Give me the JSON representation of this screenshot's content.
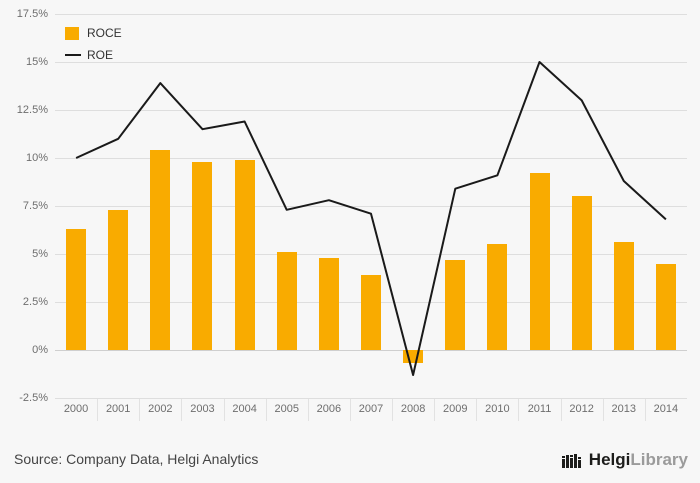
{
  "legend": {
    "roce_label": "ROCE",
    "roe_label": "ROE"
  },
  "footer": {
    "source": "Source: Company Data, Helgi Analytics",
    "logo_helgi": "Helgi",
    "logo_library": "Library"
  },
  "colors": {
    "bar": "#f9ab00",
    "line": "#1a1a1a",
    "grid": "#dedede",
    "background": "#f7f7f7",
    "tick_text": "#6e6e6e"
  },
  "chart_data": {
    "type": "bar",
    "title": "",
    "xlabel": "",
    "ylabel": "",
    "categories": [
      "2000",
      "2001",
      "2002",
      "2003",
      "2004",
      "2005",
      "2006",
      "2007",
      "2008",
      "2009",
      "2010",
      "2011",
      "2012",
      "2013",
      "2014"
    ],
    "series": [
      {
        "name": "ROCE",
        "type": "bar",
        "color": "#f9ab00",
        "values": [
          6.3,
          7.3,
          10.4,
          9.8,
          9.9,
          5.1,
          4.8,
          3.9,
          -0.7,
          4.7,
          5.5,
          9.2,
          8.0,
          5.6,
          4.5
        ]
      },
      {
        "name": "ROE",
        "type": "line",
        "color": "#1a1a1a",
        "values": [
          10.0,
          11.0,
          13.9,
          11.5,
          11.9,
          7.3,
          7.8,
          7.1,
          -1.3,
          8.4,
          9.1,
          15.0,
          13.0,
          8.8,
          6.8
        ]
      }
    ],
    "ylim": [
      -2.5,
      17.5
    ],
    "yticks": [
      -2.5,
      0,
      2.5,
      5,
      7.5,
      10,
      12.5,
      15,
      17.5
    ],
    "ytick_suffix": "%",
    "grid": true,
    "legend_position": "top-left"
  }
}
